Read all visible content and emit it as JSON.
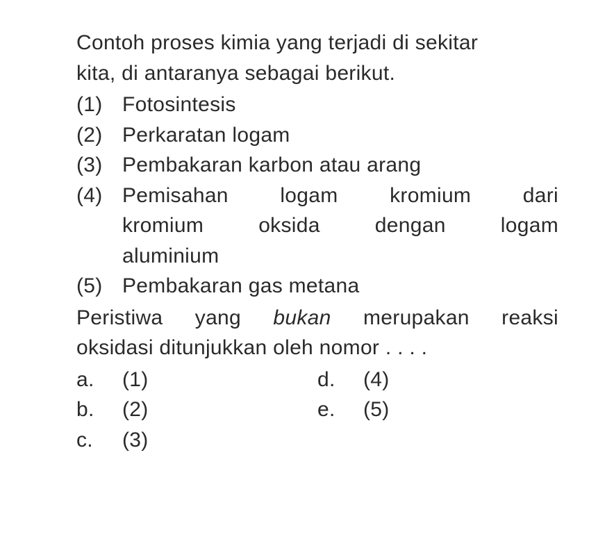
{
  "text_color": "#2a2a2a",
  "background_color": "#ffffff",
  "font_size": 30,
  "intro": {
    "line1": "Contoh proses kimia yang terjadi di sekitar",
    "line2": "kita, di antaranya sebagai berikut."
  },
  "numbered_items": [
    {
      "label": "(1)",
      "text": "Fotosintesis"
    },
    {
      "label": "(2)",
      "text": "Perkaratan logam"
    },
    {
      "label": "(3)",
      "text": "Pembakaran karbon atau arang"
    },
    {
      "label": "(4)",
      "line1": "Pemisahan logam kromium dari",
      "line2": "kromium oksida dengan logam",
      "line3": "aluminium"
    },
    {
      "label": "(5)",
      "text": "Pembakaran gas metana"
    }
  ],
  "question": {
    "part1": "Peristiwa yang ",
    "italic": "bukan",
    "part2": " merupakan reaksi",
    "line2": "oksidasi ditunjukkan oleh nomor . . . ."
  },
  "options": {
    "a": {
      "label": "a.",
      "text": "(1)"
    },
    "b": {
      "label": "b.",
      "text": "(2)"
    },
    "c": {
      "label": "c.",
      "text": "(3)"
    },
    "d": {
      "label": "d.",
      "text": "(4)"
    },
    "e": {
      "label": "e.",
      "text": "(5)"
    }
  }
}
